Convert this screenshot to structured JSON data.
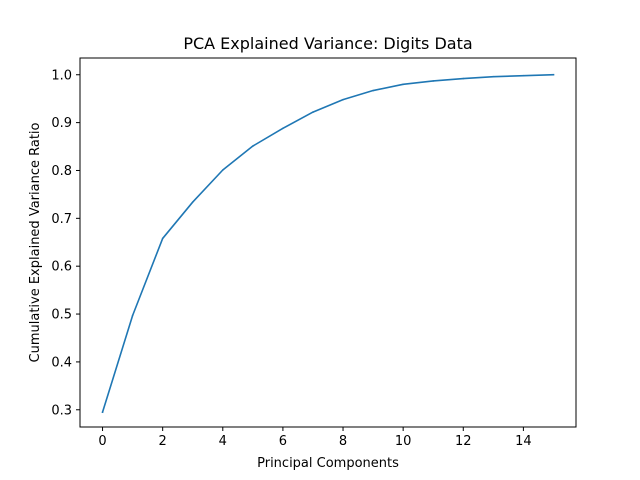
{
  "chart_data": {
    "type": "line",
    "title": "PCA Explained Variance: Digits Data",
    "xlabel": "Principal Components",
    "ylabel": "Cumulative Explained Variance Ratio",
    "xlim": [
      -0.75,
      15.75
    ],
    "ylim": [
      0.264,
      1.035
    ],
    "xticks": [
      0,
      2,
      4,
      6,
      8,
      10,
      12,
      14
    ],
    "xtick_labels": [
      "0",
      "2",
      "4",
      "6",
      "8",
      "10",
      "12",
      "14"
    ],
    "yticks": [
      0.3,
      0.4,
      0.5,
      0.6,
      0.7,
      0.8,
      0.9,
      1.0
    ],
    "ytick_labels": [
      "0.3",
      "0.4",
      "0.5",
      "0.6",
      "0.7",
      "0.8",
      "0.9",
      "1.0"
    ],
    "grid": false,
    "legend": "none",
    "series": [
      {
        "color": "#1f77b4",
        "x": [
          0,
          1,
          2,
          3,
          4,
          5,
          6,
          7,
          8,
          9,
          10,
          11,
          12,
          13,
          14,
          15
        ],
        "y": [
          0.295,
          0.497,
          0.658,
          0.734,
          0.801,
          0.851,
          0.888,
          0.922,
          0.948,
          0.967,
          0.98,
          0.987,
          0.992,
          0.996,
          0.998,
          1.0
        ]
      }
    ]
  }
}
